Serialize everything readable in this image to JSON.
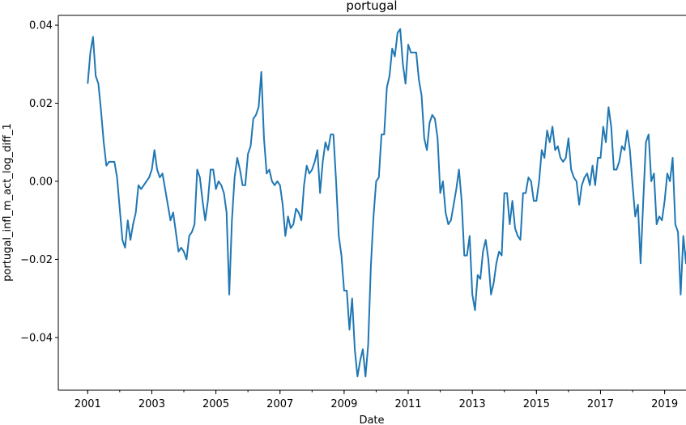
{
  "chart_data": {
    "type": "line",
    "title": "portugal",
    "xlabel": "Date",
    "ylabel": "portugal_infl_m_act_log_diff_1",
    "x_start": "2001-01",
    "x_end": "2019-09",
    "xlim": [
      "2000-02",
      "2019-09"
    ],
    "ylim": [
      -0.0535,
      0.0425
    ],
    "x_ticks": [
      "2001",
      "2003",
      "2005",
      "2007",
      "2009",
      "2011",
      "2013",
      "2015",
      "2017",
      "2019"
    ],
    "y_ticks": [
      "−0.04",
      "−0.02",
      "0.00",
      "0.02",
      "0.04"
    ],
    "y_tick_values": [
      -0.04,
      -0.02,
      0.0,
      0.02,
      0.04
    ],
    "grid": false,
    "line_color": "#1f77b4",
    "series": [
      {
        "values": [
          0.025,
          0.033,
          0.037,
          0.027,
          0.025,
          0.018,
          0.01,
          0.004,
          0.005,
          0.005,
          0.005,
          0.001,
          -0.007,
          -0.015,
          -0.017,
          -0.01,
          -0.015,
          -0.011,
          -0.008,
          -0.001,
          -0.002,
          -0.001,
          0.0,
          0.001,
          0.003,
          0.008,
          0.003,
          0.001,
          0.002,
          -0.002,
          -0.006,
          -0.01,
          -0.008,
          -0.013,
          -0.018,
          -0.017,
          -0.018,
          -0.02,
          -0.014,
          -0.013,
          -0.011,
          0.003,
          0.001,
          -0.005,
          -0.01,
          -0.005,
          0.003,
          0.003,
          -0.002,
          0.0,
          -0.001,
          -0.003,
          -0.008,
          -0.029,
          -0.01,
          0.001,
          0.006,
          0.003,
          -0.001,
          -0.001,
          0.007,
          0.009,
          0.016,
          0.017,
          0.019,
          0.028,
          0.011,
          0.002,
          0.003,
          0.0,
          -0.001,
          0.0,
          -0.001,
          -0.006,
          -0.014,
          -0.009,
          -0.012,
          -0.011,
          -0.007,
          -0.008,
          -0.01,
          -0.001,
          0.004,
          0.002,
          0.003,
          0.005,
          0.008,
          -0.003,
          0.005,
          0.01,
          0.008,
          0.012,
          0.012,
          0.0,
          -0.014,
          -0.019,
          -0.028,
          -0.028,
          -0.038,
          -0.03,
          -0.043,
          -0.05,
          -0.046,
          -0.043,
          -0.05,
          -0.042,
          -0.022,
          -0.009,
          0.0,
          0.001,
          0.012,
          0.012,
          0.024,
          0.027,
          0.034,
          0.032,
          0.038,
          0.039,
          0.03,
          0.025,
          0.035,
          0.033,
          0.033,
          0.033,
          0.026,
          0.022,
          0.011,
          0.008,
          0.015,
          0.017,
          0.016,
          0.011,
          -0.003,
          0.0,
          -0.008,
          -0.011,
          -0.01,
          -0.006,
          -0.002,
          0.003,
          -0.005,
          -0.019,
          -0.019,
          -0.014,
          -0.029,
          -0.033,
          -0.024,
          -0.025,
          -0.018,
          -0.015,
          -0.02,
          -0.029,
          -0.026,
          -0.021,
          -0.018,
          -0.019,
          -0.003,
          -0.003,
          -0.011,
          -0.005,
          -0.012,
          -0.014,
          -0.015,
          -0.003,
          -0.003,
          0.001,
          0.0,
          -0.005,
          -0.005,
          0.0,
          0.008,
          0.006,
          0.013,
          0.01,
          0.014,
          0.008,
          0.009,
          0.006,
          0.005,
          0.006,
          0.011,
          0.003,
          0.001,
          0.0,
          -0.006,
          -0.001,
          0.001,
          0.002,
          -0.001,
          0.004,
          -0.001,
          0.006,
          0.006,
          0.014,
          0.01,
          0.019,
          0.014,
          0.003,
          0.003,
          0.005,
          0.009,
          0.008,
          0.013,
          0.008,
          -0.001,
          -0.009,
          -0.006,
          -0.021,
          -0.005,
          0.01,
          0.012,
          0.0,
          0.002,
          -0.011,
          -0.009,
          -0.01,
          -0.005,
          0.002,
          0.0,
          0.006,
          -0.011,
          -0.013,
          -0.029,
          -0.014,
          -0.021,
          -0.009
        ]
      }
    ]
  }
}
